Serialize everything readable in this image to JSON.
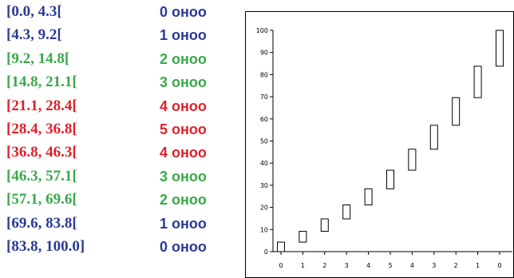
{
  "legend": {
    "rows": [
      {
        "range": "[0.0, 4.3[",
        "score": "0 оноо",
        "color": "#2b3a93"
      },
      {
        "range": "[4.3, 9.2[",
        "score": "1 оноо",
        "color": "#2b3a93"
      },
      {
        "range": "[9.2, 14.8[",
        "score": "2 оноо",
        "color": "#3aa84a"
      },
      {
        "range": "[14.8, 21.1[",
        "score": "3 оноо",
        "color": "#3aa84a"
      },
      {
        "range": "[21.1, 28.4[",
        "score": "4 оноо",
        "color": "#e0202a"
      },
      {
        "range": "[28.4, 36.8[",
        "score": "5 оноо",
        "color": "#e0202a"
      },
      {
        "range": "[36.8, 46.3[",
        "score": "4 оноо",
        "color": "#e0202a"
      },
      {
        "range": "[46.3, 57.1[",
        "score": "3 оноо",
        "color": "#3aa84a"
      },
      {
        "range": "[57.1, 69.6[",
        "score": "2 оноо",
        "color": "#3aa84a"
      },
      {
        "range": "[69.6, 83.8[",
        "score": "1 оноо",
        "color": "#2b3a93"
      },
      {
        "range": "[83.8, 100.0]",
        "score": "0 оноо",
        "color": "#2b3a93"
      }
    ]
  },
  "chart_data": {
    "type": "bar",
    "categories": [
      "0",
      "1",
      "2",
      "3",
      "4",
      "5",
      "4",
      "3",
      "2",
      "1",
      "0"
    ],
    "intervals": [
      [
        0.0,
        4.3
      ],
      [
        4.3,
        9.2
      ],
      [
        9.2,
        14.8
      ],
      [
        14.8,
        21.1
      ],
      [
        21.1,
        28.4
      ],
      [
        28.4,
        36.8
      ],
      [
        36.8,
        46.3
      ],
      [
        46.3,
        57.1
      ],
      [
        57.1,
        69.6
      ],
      [
        69.6,
        83.8
      ],
      [
        83.8,
        100.0
      ]
    ],
    "ylim": [
      0,
      100
    ],
    "yticks": [
      0,
      10,
      20,
      30,
      40,
      50,
      60,
      70,
      80,
      90,
      100
    ],
    "grid": false,
    "bar_color": "#ffffff",
    "bar_stroke": "#000000"
  }
}
